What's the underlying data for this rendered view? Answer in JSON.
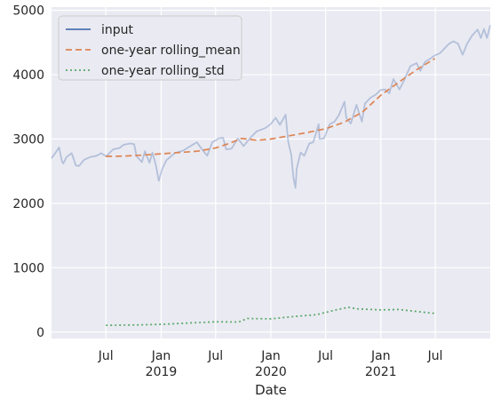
{
  "chart_data": {
    "type": "line",
    "title": "",
    "xlabel": "Date",
    "ylabel": "",
    "x_range": [
      "2018-01-01",
      "2021-12-31"
    ],
    "ylim": [
      -100,
      5050
    ],
    "grid": true,
    "legend_position": "top-left",
    "y_ticks": [
      0,
      1000,
      2000,
      3000,
      4000,
      5000
    ],
    "x_ticks": [
      {
        "date": "2018-07-01",
        "label": "Jul",
        "sub": ""
      },
      {
        "date": "2019-01-01",
        "label": "Jan",
        "sub": "2019"
      },
      {
        "date": "2019-07-01",
        "label": "Jul",
        "sub": ""
      },
      {
        "date": "2020-01-01",
        "label": "Jan",
        "sub": "2020"
      },
      {
        "date": "2020-07-01",
        "label": "Jul",
        "sub": ""
      },
      {
        "date": "2021-01-01",
        "label": "Jan",
        "sub": "2021"
      },
      {
        "date": "2021-07-01",
        "label": "Jul",
        "sub": ""
      }
    ],
    "series": [
      {
        "name": "input",
        "color": "#4c72b0",
        "style": "solid",
        "points": [
          [
            "2018-01-01",
            2700
          ],
          [
            "2018-01-15",
            2790
          ],
          [
            "2018-01-26",
            2870
          ],
          [
            "2018-02-05",
            2650
          ],
          [
            "2018-02-09",
            2620
          ],
          [
            "2018-02-20",
            2720
          ],
          [
            "2018-03-09",
            2780
          ],
          [
            "2018-03-23",
            2590
          ],
          [
            "2018-04-02",
            2580
          ],
          [
            "2018-04-20",
            2680
          ],
          [
            "2018-05-10",
            2720
          ],
          [
            "2018-06-01",
            2740
          ],
          [
            "2018-06-15",
            2780
          ],
          [
            "2018-07-02",
            2730
          ],
          [
            "2018-07-25",
            2840
          ],
          [
            "2018-08-15",
            2860
          ],
          [
            "2018-08-29",
            2910
          ],
          [
            "2018-09-20",
            2930
          ],
          [
            "2018-10-03",
            2920
          ],
          [
            "2018-10-11",
            2730
          ],
          [
            "2018-10-29",
            2640
          ],
          [
            "2018-11-08",
            2810
          ],
          [
            "2018-11-23",
            2630
          ],
          [
            "2018-12-03",
            2790
          ],
          [
            "2018-12-14",
            2600
          ],
          [
            "2018-12-24",
            2350
          ],
          [
            "2019-01-04",
            2530
          ],
          [
            "2019-01-18",
            2670
          ],
          [
            "2019-02-15",
            2780
          ],
          [
            "2019-03-15",
            2820
          ],
          [
            "2019-04-12",
            2900
          ],
          [
            "2019-04-30",
            2950
          ],
          [
            "2019-05-15",
            2850
          ],
          [
            "2019-06-03",
            2740
          ],
          [
            "2019-06-20",
            2950
          ],
          [
            "2019-07-12",
            3010
          ],
          [
            "2019-07-26",
            3020
          ],
          [
            "2019-08-05",
            2840
          ],
          [
            "2019-08-23",
            2850
          ],
          [
            "2019-09-13",
            3010
          ],
          [
            "2019-10-02",
            2890
          ],
          [
            "2019-10-25",
            3020
          ],
          [
            "2019-11-15",
            3120
          ],
          [
            "2019-12-13",
            3170
          ],
          [
            "2019-12-31",
            3230
          ],
          [
            "2020-01-17",
            3330
          ],
          [
            "2020-01-31",
            3220
          ],
          [
            "2020-02-19",
            3380
          ],
          [
            "2020-02-28",
            2950
          ],
          [
            "2020-03-09",
            2750
          ],
          [
            "2020-03-16",
            2400
          ],
          [
            "2020-03-23",
            2240
          ],
          [
            "2020-03-27",
            2540
          ],
          [
            "2020-04-09",
            2790
          ],
          [
            "2020-04-21",
            2740
          ],
          [
            "2020-05-08",
            2930
          ],
          [
            "2020-05-21",
            2950
          ],
          [
            "2020-06-08",
            3230
          ],
          [
            "2020-06-11",
            3000
          ],
          [
            "2020-06-26",
            3010
          ],
          [
            "2020-07-15",
            3230
          ],
          [
            "2020-07-31",
            3270
          ],
          [
            "2020-08-14",
            3370
          ],
          [
            "2020-09-02",
            3580
          ],
          [
            "2020-09-08",
            3330
          ],
          [
            "2020-09-23",
            3240
          ],
          [
            "2020-10-12",
            3530
          ],
          [
            "2020-10-30",
            3270
          ],
          [
            "2020-11-09",
            3550
          ],
          [
            "2020-11-27",
            3640
          ],
          [
            "2020-12-15",
            3690
          ],
          [
            "2020-12-31",
            3760
          ],
          [
            "2021-01-15",
            3770
          ],
          [
            "2021-01-29",
            3710
          ],
          [
            "2021-02-12",
            3930
          ],
          [
            "2021-03-04",
            3770
          ],
          [
            "2021-03-19",
            3910
          ],
          [
            "2021-04-09",
            4130
          ],
          [
            "2021-04-30",
            4180
          ],
          [
            "2021-05-12",
            4060
          ],
          [
            "2021-05-28",
            4200
          ],
          [
            "2021-06-15",
            4250
          ],
          [
            "2021-06-30",
            4300
          ],
          [
            "2021-07-16",
            4330
          ],
          [
            "2021-07-30",
            4400
          ],
          [
            "2021-08-16",
            4480
          ],
          [
            "2021-08-31",
            4520
          ],
          [
            "2021-09-15",
            4480
          ],
          [
            "2021-09-30",
            4310
          ],
          [
            "2021-10-15",
            4480
          ],
          [
            "2021-11-01",
            4610
          ],
          [
            "2021-11-19",
            4700
          ],
          [
            "2021-11-30",
            4570
          ],
          [
            "2021-12-10",
            4710
          ],
          [
            "2021-12-20",
            4570
          ],
          [
            "2021-12-31",
            4770
          ]
        ]
      },
      {
        "name": "one-year rolling_mean",
        "color": "#dd8452",
        "style": "dashed",
        "points": [
          [
            "2018-07-01",
            2730
          ],
          [
            "2018-09-01",
            2735
          ],
          [
            "2018-11-01",
            2750
          ],
          [
            "2019-01-01",
            2770
          ],
          [
            "2019-03-01",
            2790
          ],
          [
            "2019-05-01",
            2810
          ],
          [
            "2019-07-01",
            2860
          ],
          [
            "2019-08-15",
            2930
          ],
          [
            "2019-09-25",
            3010
          ],
          [
            "2019-11-15",
            2980
          ],
          [
            "2020-01-01",
            3000
          ],
          [
            "2020-03-01",
            3050
          ],
          [
            "2020-05-01",
            3100
          ],
          [
            "2020-07-01",
            3160
          ],
          [
            "2020-09-01",
            3260
          ],
          [
            "2020-11-01",
            3420
          ],
          [
            "2021-01-01",
            3680
          ],
          [
            "2021-03-01",
            3880
          ],
          [
            "2021-05-01",
            4080
          ],
          [
            "2021-06-30",
            4250
          ]
        ]
      },
      {
        "name": "one-year rolling_std",
        "color": "#55a868",
        "style": "dotted",
        "points": [
          [
            "2018-07-01",
            105
          ],
          [
            "2018-10-01",
            110
          ],
          [
            "2019-01-01",
            120
          ],
          [
            "2019-04-01",
            140
          ],
          [
            "2019-07-01",
            160
          ],
          [
            "2019-09-15",
            155
          ],
          [
            "2019-10-15",
            210
          ],
          [
            "2020-01-01",
            205
          ],
          [
            "2020-03-15",
            240
          ],
          [
            "2020-06-01",
            270
          ],
          [
            "2020-08-01",
            340
          ],
          [
            "2020-09-15",
            385
          ],
          [
            "2020-10-15",
            360
          ],
          [
            "2021-01-01",
            345
          ],
          [
            "2021-03-01",
            350
          ],
          [
            "2021-06-30",
            290
          ]
        ]
      }
    ]
  }
}
